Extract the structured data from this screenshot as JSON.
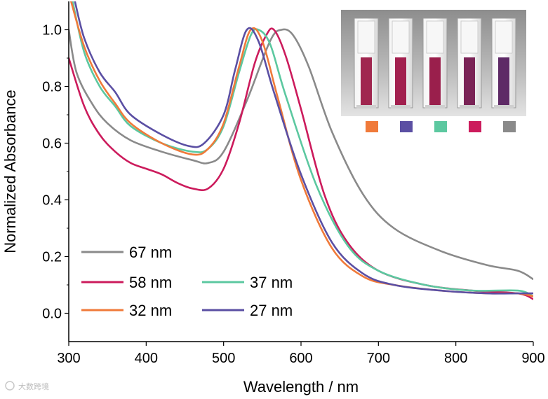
{
  "chart_data": {
    "type": "line",
    "title": "",
    "xlabel": "Wavelength / nm",
    "ylabel": "Normalized Absorbance",
    "xlim": [
      300,
      900
    ],
    "ylim": [
      -0.1,
      1.1
    ],
    "xticks": [
      300,
      400,
      500,
      600,
      700,
      800,
      900
    ],
    "yticks": [
      0.0,
      0.2,
      0.4,
      0.6,
      0.8,
      1.0
    ],
    "ytick_labels": [
      "0.0",
      "0.2",
      "0.4",
      "0.6",
      "0.8",
      "1.0"
    ],
    "legend_placement": "bottom-left",
    "series": [
      {
        "name": "67 nm",
        "color": "#8a8a8a",
        "x": [
          300,
          310,
          330,
          350,
          380,
          420,
          460,
          480,
          500,
          530,
          560,
          575,
          590,
          610,
          640,
          680,
          720,
          780,
          840,
          880,
          900
        ],
        "y": [
          1.0,
          0.85,
          0.74,
          0.67,
          0.61,
          0.57,
          0.54,
          0.53,
          0.57,
          0.75,
          0.96,
          1.0,
          0.98,
          0.87,
          0.64,
          0.42,
          0.3,
          0.22,
          0.17,
          0.15,
          0.12
        ]
      },
      {
        "name": "58 nm",
        "color": "#cc1b5c",
        "x": [
          300,
          320,
          340,
          360,
          380,
          400,
          420,
          440,
          460,
          480,
          500,
          520,
          540,
          555,
          565,
          580,
          600,
          630,
          660,
          700,
          760,
          820,
          880,
          900
        ],
        "y": [
          0.9,
          0.73,
          0.63,
          0.57,
          0.53,
          0.51,
          0.49,
          0.46,
          0.44,
          0.44,
          0.51,
          0.67,
          0.88,
          0.98,
          1.0,
          0.91,
          0.72,
          0.42,
          0.25,
          0.15,
          0.1,
          0.08,
          0.07,
          0.05
        ]
      },
      {
        "name": "37 nm",
        "color": "#5cc8a0",
        "x": [
          305,
          320,
          340,
          360,
          380,
          420,
          460,
          480,
          500,
          520,
          535,
          545,
          560,
          580,
          620,
          660,
          700,
          760,
          820,
          880,
          900
        ],
        "y": [
          1.1,
          0.92,
          0.8,
          0.73,
          0.66,
          0.6,
          0.57,
          0.58,
          0.66,
          0.85,
          0.98,
          1.0,
          0.95,
          0.77,
          0.45,
          0.24,
          0.15,
          0.1,
          0.08,
          0.08,
          0.06
        ]
      },
      {
        "name": "32 nm",
        "color": "#f07a3a",
        "x": [
          303,
          320,
          340,
          360,
          380,
          420,
          460,
          480,
          500,
          520,
          535,
          550,
          570,
          600,
          640,
          680,
          720,
          780,
          840,
          880,
          900
        ],
        "y": [
          1.1,
          0.94,
          0.82,
          0.74,
          0.67,
          0.6,
          0.56,
          0.58,
          0.67,
          0.87,
          1.0,
          0.96,
          0.76,
          0.47,
          0.23,
          0.13,
          0.1,
          0.08,
          0.07,
          0.07,
          0.06
        ]
      },
      {
        "name": "27 nm",
        "color": "#5b4fa3",
        "x": [
          308,
          320,
          340,
          360,
          380,
          420,
          455,
          475,
          500,
          515,
          530,
          545,
          565,
          600,
          640,
          680,
          720,
          780,
          840,
          880,
          900
        ],
        "y": [
          1.1,
          0.97,
          0.85,
          0.78,
          0.7,
          0.63,
          0.59,
          0.6,
          0.7,
          0.86,
          1.0,
          0.96,
          0.78,
          0.49,
          0.25,
          0.14,
          0.1,
          0.08,
          0.07,
          0.07,
          0.07
        ]
      }
    ],
    "legend": [
      {
        "label": "67 nm",
        "series": 0
      },
      {
        "label": "58 nm",
        "series": 1
      },
      {
        "label": "37 nm",
        "series": 2
      },
      {
        "label": "32 nm",
        "series": 3
      },
      {
        "label": "27 nm",
        "series": 4
      }
    ],
    "inset": {
      "description_colors": [
        "#f07a3a",
        "#5b4fa3",
        "#5cc8a0",
        "#cc1b5c",
        "#8a8a8a"
      ],
      "liquid_colors": [
        "#a0264f",
        "#a21f4e",
        "#9a1f4c",
        "#7a2356",
        "#5e2a66"
      ]
    }
  },
  "watermark": {
    "text": "大数跨境"
  }
}
